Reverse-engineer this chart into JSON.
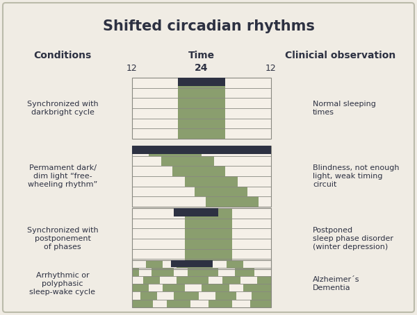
{
  "title": "Shifted circadian rhythms",
  "bg_color": "#f0ece4",
  "dark_color": "#2d3142",
  "green_color": "#8a9e6e",
  "white_color": "#f5f0e8",
  "border_color": "#888880",
  "frame_color": "#cccccc",
  "conditions": [
    "Synchronized with\ndarkbright cycle",
    "Permament dark/\ndim light “free-\nwheeling rhythm”",
    "Synchronized with\npostponement\nof phases",
    "Arrhythmic or\npolyphasic\nsleep-wake cycle"
  ],
  "observations": [
    "Normal sleeping\ntimes",
    "Blindness, not enough\nlight, weak timing\ncircuit",
    "Postponed\nsleep phase disorder\n(winter depression)",
    "Alzheimer´s\nDementia"
  ],
  "col_headers": [
    "Conditions",
    "Time",
    "Clinicial observation"
  ],
  "num_rows_per_panel": 6
}
